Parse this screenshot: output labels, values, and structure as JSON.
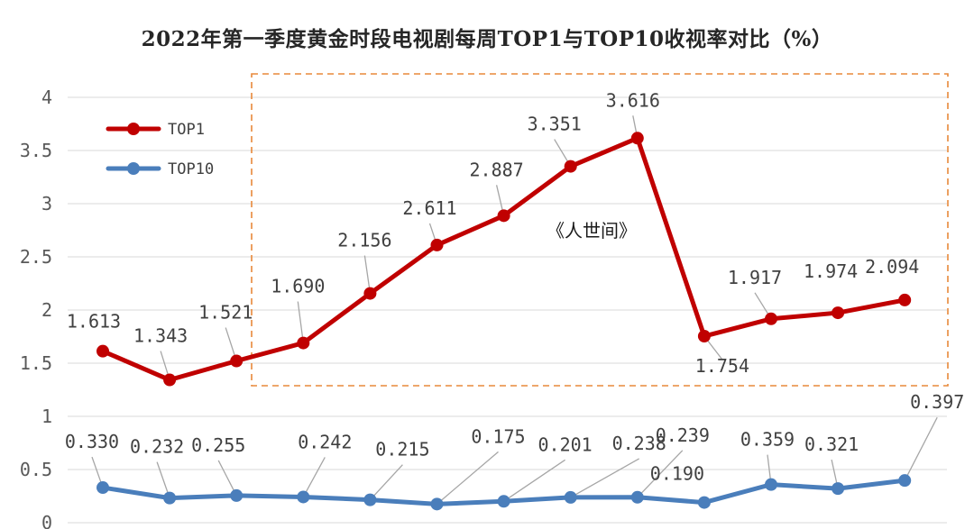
{
  "chart_data": {
    "type": "line",
    "title": "2022年第一季度黄金时段电视剧每周TOP1与TOP10收视率对比（%）",
    "xlabel": "",
    "ylabel": "",
    "ylim": [
      0,
      4
    ],
    "y_ticks": [
      "0",
      "0.5",
      "1",
      "1.5",
      "2",
      "2.5",
      "3",
      "3.5",
      "4"
    ],
    "grid": true,
    "legend_position": "top-left",
    "annotation": "《人世间》",
    "series": [
      {
        "name": "TOP1",
        "color": "#c00000",
        "values": [
          1.613,
          1.343,
          1.521,
          1.69,
          2.156,
          2.611,
          2.887,
          3.351,
          3.616,
          1.754,
          1.917,
          1.974,
          2.094
        ],
        "labels": [
          "1.613",
          "1.343",
          "1.521",
          "1.690",
          "2.156",
          "2.611",
          "2.887",
          "3.351",
          "3.616",
          "1.754",
          "1.917",
          "1.974",
          "2.094"
        ]
      },
      {
        "name": "TOP10",
        "color": "#4a7ebb",
        "values": [
          0.33,
          0.232,
          0.255,
          0.242,
          0.215,
          0.175,
          0.201,
          0.238,
          0.239,
          0.19,
          0.359,
          0.321,
          0.397
        ],
        "labels": [
          "0.330",
          "0.232",
          "0.255",
          "0.242",
          "0.215",
          "0.175",
          "0.201",
          "0.238",
          "0.239",
          "0.190",
          "0.359",
          "0.321",
          "0.397"
        ]
      }
    ],
    "highlight_box_color": "#e8893a",
    "gridline_color": "#d9d9d9"
  }
}
